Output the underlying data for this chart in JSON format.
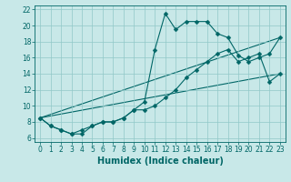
{
  "xlabel": "Humidex (Indice chaleur)",
  "xlim": [
    -0.5,
    23.5
  ],
  "ylim": [
    5.5,
    22.5
  ],
  "xticks": [
    0,
    1,
    2,
    3,
    4,
    5,
    6,
    7,
    8,
    9,
    10,
    11,
    12,
    13,
    14,
    15,
    16,
    17,
    18,
    19,
    20,
    21,
    22,
    23
  ],
  "yticks": [
    6,
    8,
    10,
    12,
    14,
    16,
    18,
    20,
    22
  ],
  "bg_color": "#c8e8e8",
  "line_color": "#006666",
  "grid_color": "#90c8c8",
  "line1_x": [
    0,
    1,
    2,
    3,
    4,
    5,
    6,
    7,
    8,
    9,
    10,
    11,
    12,
    13,
    14,
    15,
    16,
    17,
    18,
    19,
    20,
    21,
    22,
    23
  ],
  "line1_y": [
    8.5,
    7.5,
    7.0,
    6.5,
    6.5,
    7.5,
    8.0,
    8.0,
    8.5,
    9.5,
    10.5,
    17.0,
    21.5,
    19.5,
    20.5,
    20.5,
    20.5,
    19.0,
    18.5,
    16.3,
    15.5,
    16.0,
    16.5,
    18.5
  ],
  "line2_x": [
    0,
    1,
    2,
    3,
    4,
    5,
    6,
    7,
    8,
    9,
    10,
    11,
    12,
    13,
    14,
    15,
    16,
    17,
    18,
    19,
    20,
    21,
    22,
    23
  ],
  "line2_y": [
    8.5,
    7.5,
    7.0,
    6.5,
    7.0,
    7.5,
    8.0,
    8.0,
    8.5,
    9.5,
    9.5,
    10.0,
    11.0,
    12.0,
    13.5,
    14.5,
    15.5,
    16.5,
    17.0,
    15.5,
    16.0,
    16.5,
    13.0,
    14.0
  ],
  "line3_x": [
    0,
    23
  ],
  "line3_y": [
    8.5,
    18.5
  ],
  "line4_x": [
    0,
    23
  ],
  "line4_y": [
    8.5,
    14.0
  ],
  "marker_style": "D",
  "marker_size": 2.5,
  "linewidth": 0.8,
  "tick_fontsize": 5.5,
  "xlabel_fontsize": 7
}
